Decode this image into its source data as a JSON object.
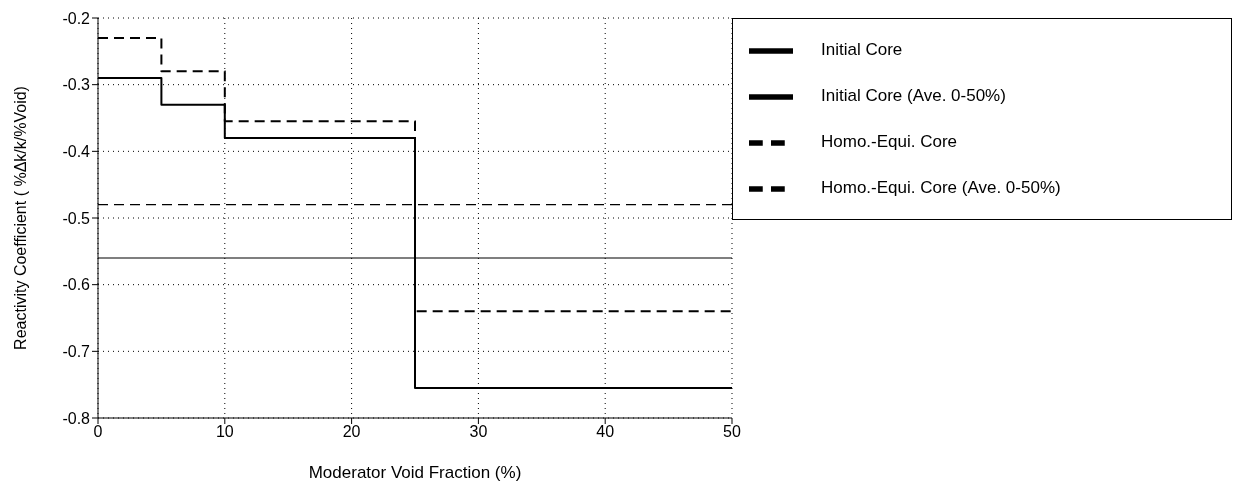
{
  "chart_data": {
    "type": "step",
    "xlabel": "Moderator Void Fraction  (%)",
    "ylabel": "Reactivity Coefficient  ( %Δk/k/%Void)",
    "xlim": [
      0,
      50
    ],
    "xticks": [
      0,
      10,
      20,
      30,
      40,
      50
    ],
    "ylim": [
      -0.8,
      -0.2
    ],
    "yticks": [
      -0.8,
      -0.7,
      -0.6,
      -0.5,
      -0.4,
      -0.3,
      -0.2
    ],
    "grid": true,
    "legend": "right",
    "marker": "none",
    "x": [
      0,
      5,
      10,
      25,
      50
    ],
    "series": [
      {
        "name": "Initial Core",
        "color": "#000000",
        "line_style": "solid",
        "values": [
          -0.29,
          -0.33,
          -0.38,
          -0.755,
          -0.755
        ]
      },
      {
        "name": "Initial Core (Ave. 0-50%)",
        "color": "#000000",
        "line_style": "solid",
        "values": [
          -0.56,
          -0.56,
          -0.56,
          -0.56,
          -0.56
        ]
      },
      {
        "name": "Homo.-Equi. Core",
        "color": "#000000",
        "line_style": "dashed",
        "values": [
          -0.23,
          -0.28,
          -0.355,
          -0.64,
          -0.64
        ]
      },
      {
        "name": "Homo.-Equi. Core (Ave. 0-50%)",
        "color": "#000000",
        "line_style": "dashed",
        "values": [
          -0.48,
          -0.48,
          -0.48,
          -0.48,
          -0.48
        ]
      }
    ]
  }
}
